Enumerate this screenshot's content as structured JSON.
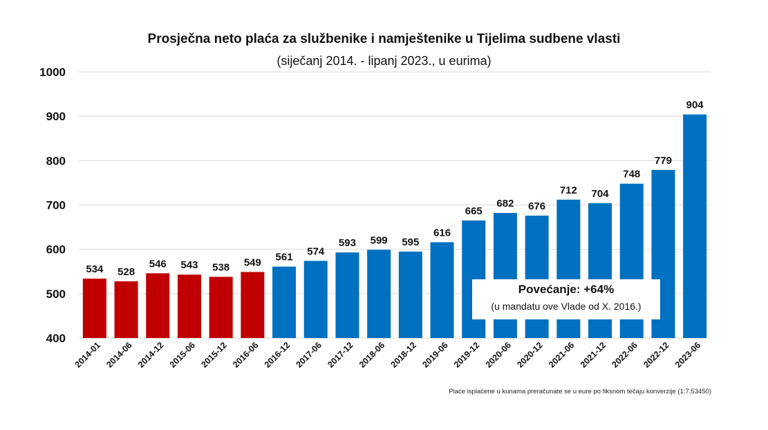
{
  "chart_data": {
    "type": "bar",
    "title": "Prosječna neto plaća za službenike i namještenike u Tijelima sudbene vlasti",
    "subtitle": "(siječanj 2014. - lipanj 2023., u eurima)",
    "categories": [
      "2014-01",
      "2014-06",
      "2014-12",
      "2015-06",
      "2015-12",
      "2016-06",
      "2016-12",
      "2017-06",
      "2017-12",
      "2018-06",
      "2018-12",
      "2019-06",
      "2019-12",
      "2020-06",
      "2020-12",
      "2021-06",
      "2021-12",
      "2022-06",
      "2022-12",
      "2023-06"
    ],
    "values": [
      534,
      528,
      546,
      543,
      538,
      549,
      561,
      574,
      593,
      599,
      595,
      616,
      665,
      682,
      676,
      712,
      704,
      748,
      779,
      904
    ],
    "bar_colors": [
      "#c00000",
      "#c00000",
      "#c00000",
      "#c00000",
      "#c00000",
      "#c00000",
      "#0070c0",
      "#0070c0",
      "#0070c0",
      "#0070c0",
      "#0070c0",
      "#0070c0",
      "#0070c0",
      "#0070c0",
      "#0070c0",
      "#0070c0",
      "#0070c0",
      "#0070c0",
      "#0070c0",
      "#0070c0"
    ],
    "ylim": [
      400,
      1000
    ],
    "yticks": [
      400,
      500,
      600,
      700,
      800,
      900,
      1000
    ],
    "grid": true,
    "xlabel": "",
    "ylabel": ""
  },
  "callout": {
    "main": "Povećanje: +64%",
    "sub": "(u mandatu ove Vlade od X. 2016.)"
  },
  "footnote": "Plaće isplaćene u kunama preračunate se u eure po fiksnom tečaju konverzije (1:7,53450)"
}
